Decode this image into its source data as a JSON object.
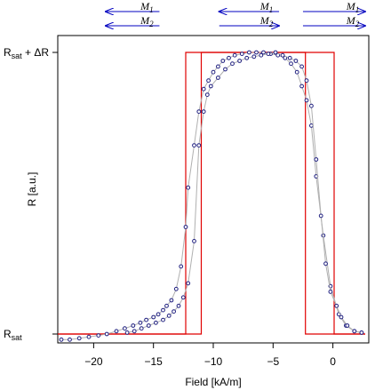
{
  "chart_data": {
    "type": "line",
    "xlabel": "Field  [kA/m]",
    "ylabel": "R [a.u.]",
    "xlim": [
      -23,
      3
    ],
    "ylim": [
      0,
      1
    ],
    "x_ticks": [
      -20,
      -15,
      -10,
      -5,
      0
    ],
    "y_tick_labels": {
      "top": {
        "base": "R",
        "sub": "sat",
        "rest": " + ΔR",
        "value": 1
      },
      "bottom": {
        "base": "R",
        "sub": "sat",
        "rest": "",
        "value": 0
      }
    },
    "magnetization_arrows": [
      {
        "x_from": -14.5,
        "x_to": -19.0,
        "top_dir": "left",
        "bottom_dir": "left",
        "top_label": "M",
        "top_sub": "1",
        "bottom_label": "M",
        "bottom_sub": "2"
      },
      {
        "x_from": -4.5,
        "x_to": -9.5,
        "top_dir": "left",
        "bottom_dir": "right",
        "top_label": "M",
        "top_sub": "1",
        "bottom_label": "M",
        "bottom_sub": "2"
      },
      {
        "x_from": -2.5,
        "x_to": 2.7,
        "top_dir": "right",
        "bottom_dir": "right",
        "top_label": "M",
        "top_sub": "1",
        "bottom_label": "M",
        "bottom_sub": "2"
      }
    ],
    "series": [
      {
        "style": "step",
        "color": "#e00000",
        "x": [
          -23,
          -12.3,
          -12.3,
          -2.3,
          -2.3,
          2.7
        ],
        "y": [
          0,
          0,
          1,
          1,
          0,
          0
        ]
      },
      {
        "style": "step",
        "color": "#e00000",
        "x": [
          2.7,
          0.1,
          0.1,
          -11,
          -11,
          -23
        ],
        "y": [
          0,
          0,
          1,
          1,
          0,
          0
        ]
      },
      {
        "style": "markers+line",
        "color": "#202080",
        "line_color": "#b0b0b0",
        "x": [
          -22.7,
          -22,
          -21.2,
          -20.4,
          -19.6,
          -18.9,
          -18.1,
          -17.4,
          -16.7,
          -16.1,
          -15.6,
          -15,
          -14.6,
          -14.2,
          -13.9,
          -13.5,
          -13.1,
          -12.7,
          -12.3,
          -12.1,
          -11.6,
          -11.2,
          -10.8,
          -10.4,
          -10.0,
          -9.6,
          -9.2,
          -8.7,
          -8.2,
          -7.6,
          -7.0,
          -6.4,
          -5.8,
          -5.2,
          -4.6,
          -4.0,
          -3.5,
          -3.0,
          -2.6,
          -2.2,
          -1.8,
          -1.4,
          -0.8,
          -0.2,
          0.5,
          1.1,
          1.8,
          2.4
        ],
        "y": [
          -0.02,
          -0.02,
          -0.015,
          -0.01,
          -0.005,
          0,
          0.01,
          0.02,
          0.03,
          0.04,
          0.05,
          0.06,
          0.07,
          0.085,
          0.1,
          0.12,
          0.16,
          0.24,
          0.38,
          0.52,
          0.67,
          0.79,
          0.87,
          0.9,
          0.93,
          0.95,
          0.97,
          0.98,
          0.99,
          0.995,
          1.0,
          1.0,
          1.0,
          0.995,
          0.99,
          0.98,
          0.96,
          0.93,
          0.88,
          0.83,
          0.74,
          0.56,
          0.35,
          0.17,
          0.07,
          0.03,
          0.01,
          0.005
        ]
      },
      {
        "style": "markers+line",
        "color": "#202080",
        "line_color": "#b0b0b0",
        "x": [
          2.4,
          1.8,
          1.2,
          0.7,
          0.3,
          -0.2,
          -0.6,
          -1.0,
          -1.4,
          -1.8,
          -2.2,
          -2.6,
          -3.1,
          -3.6,
          -4.2,
          -4.8,
          -5.4,
          -6.0,
          -6.6,
          -7.2,
          -7.8,
          -8.4,
          -9.0,
          -9.6,
          -10.2,
          -10.5,
          -10.8,
          -11.2,
          -11.6,
          -12.1,
          -12.5,
          -12.9,
          -13.3,
          -13.7,
          -14.2,
          -14.8,
          -15.4,
          -16.0,
          -16.6,
          -17.2
        ],
        "y": [
          0.005,
          0.01,
          0.03,
          0.06,
          0.1,
          0.15,
          0.25,
          0.42,
          0.62,
          0.81,
          0.9,
          0.95,
          0.97,
          0.98,
          0.99,
          1.0,
          0.995,
          0.99,
          0.985,
          0.98,
          0.97,
          0.96,
          0.94,
          0.91,
          0.88,
          0.85,
          0.79,
          0.67,
          0.33,
          0.18,
          0.13,
          0.1,
          0.08,
          0.065,
          0.05,
          0.04,
          0.03,
          0.02,
          0.01,
          0.005
        ]
      }
    ]
  }
}
